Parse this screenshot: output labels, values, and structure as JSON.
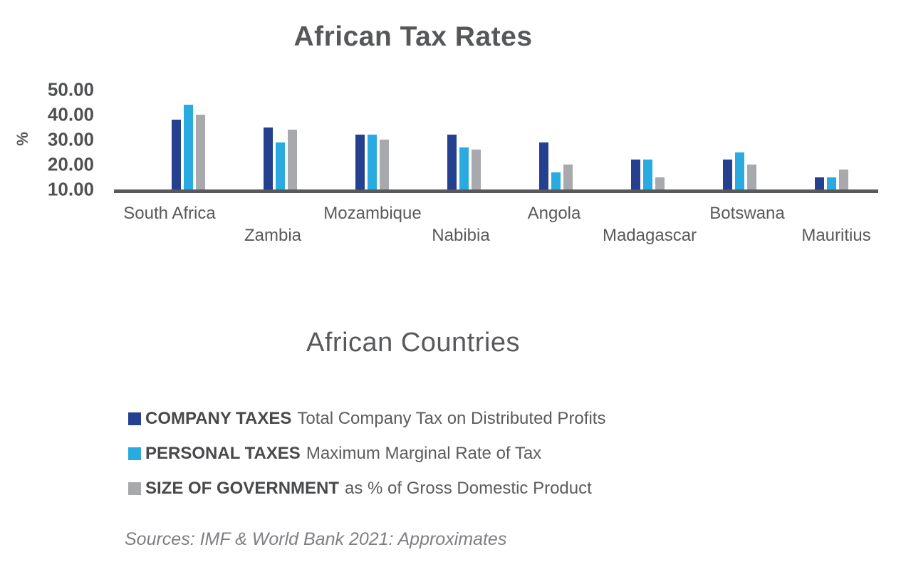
{
  "chart_data": {
    "type": "bar",
    "title": "African Tax Rates",
    "xlabel": "African Countries",
    "ylabel": "%",
    "ylim": [
      10,
      50
    ],
    "y_ticks": [
      "50.00",
      "40.00",
      "30.00",
      "20.00",
      "10.00"
    ],
    "grid": false,
    "legend_position": "below",
    "categories": [
      "South Africa",
      "Zambia",
      "Mozambique",
      "Nabibia",
      "Angola",
      "Madagascar",
      "Botswana",
      "Mauritius"
    ],
    "series": [
      {
        "name": "COMPANY TAXES",
        "description": "Total Company Tax on Distributed Profits",
        "color": "#24408E",
        "values": [
          38,
          35,
          32,
          32,
          29,
          22,
          22,
          15
        ]
      },
      {
        "name": "PERSONAL TAXES",
        "description": "Maximum Marginal Rate of Tax",
        "color": "#29ABE2",
        "values": [
          44,
          29,
          32,
          27,
          17,
          22,
          25,
          15
        ]
      },
      {
        "name": "SIZE OF GOVERNMENT",
        "description": "as % of Gross Domestic Product",
        "color": "#A7A9AC",
        "values": [
          40,
          34,
          30,
          26,
          20,
          15,
          20,
          18
        ]
      }
    ],
    "source_note": "Sources: IMF & World Bank 2021: Approximates",
    "axis_color": "#58595B",
    "text_color": "#58595B",
    "source_text_color": "#7D7F82"
  }
}
